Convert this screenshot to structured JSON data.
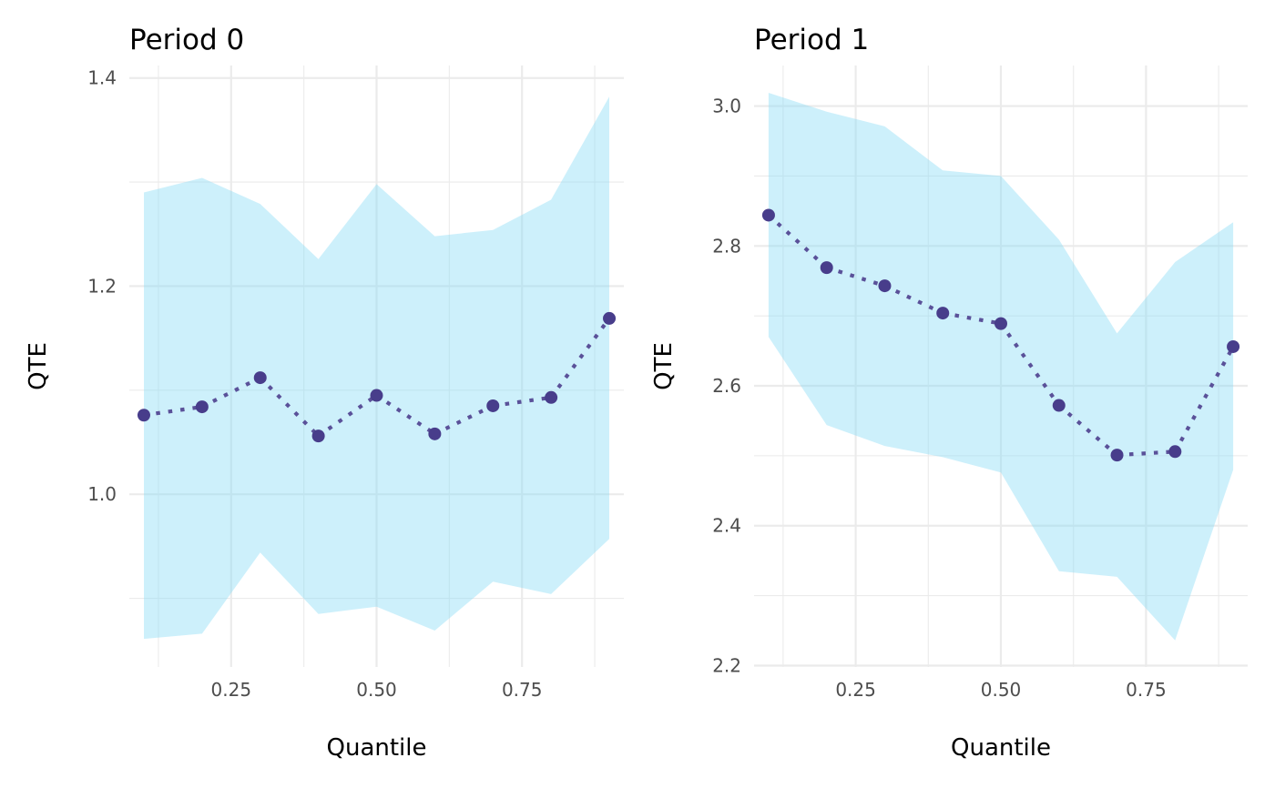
{
  "colors": {
    "ribbon": "#87dbf5",
    "ribbon_opacity": 0.42,
    "line": "#5a5199",
    "point": "#483d8b",
    "grid": "#ebebeb"
  },
  "chart_data": [
    {
      "type": "line",
      "title": "Period 0",
      "xlabel": "Quantile",
      "ylabel": "QTE",
      "xlim": [
        0.075,
        0.925
      ],
      "ylim": [
        0.834,
        1.412
      ],
      "xticks": [
        0.25,
        0.5,
        0.75
      ],
      "xtick_labels": [
        "0.25",
        "0.50",
        "0.75"
      ],
      "xminor": [
        0.125,
        0.375,
        0.625,
        0.875
      ],
      "yticks": [
        1.0,
        1.2,
        1.4
      ],
      "ytick_labels": [
        "1.0",
        "1.2",
        "1.4"
      ],
      "yminor": [
        0.9,
        1.1,
        1.3
      ],
      "grid": true,
      "line_style": "dotted",
      "x": [
        0.1,
        0.2,
        0.3,
        0.4,
        0.5,
        0.6,
        0.7,
        0.8,
        0.9
      ],
      "y": [
        1.076,
        1.084,
        1.112,
        1.056,
        1.095,
        1.058,
        1.085,
        1.093,
        1.169
      ],
      "ci_lower": [
        0.861,
        0.866,
        0.944,
        0.885,
        0.892,
        0.869,
        0.916,
        0.904,
        0.957
      ],
      "ci_upper": [
        1.29,
        1.304,
        1.279,
        1.226,
        1.298,
        1.248,
        1.254,
        1.283,
        1.382
      ]
    },
    {
      "type": "line",
      "title": "Period 1",
      "xlabel": "Quantile",
      "ylabel": "QTE",
      "xlim": [
        0.075,
        0.925
      ],
      "ylim": [
        2.198,
        3.058
      ],
      "xticks": [
        0.25,
        0.5,
        0.75
      ],
      "xtick_labels": [
        "0.25",
        "0.50",
        "0.75"
      ],
      "xminor": [
        0.125,
        0.375,
        0.625,
        0.875
      ],
      "yticks": [
        2.2,
        2.4,
        2.6,
        2.8,
        3.0
      ],
      "ytick_labels": [
        "2.2",
        "2.4",
        "2.6",
        "2.8",
        "3.0"
      ],
      "yminor": [
        2.3,
        2.5,
        2.7,
        2.9
      ],
      "grid": true,
      "line_style": "dotted",
      "x": [
        0.1,
        0.2,
        0.3,
        0.4,
        0.5,
        0.6,
        0.7,
        0.8,
        0.9
      ],
      "y": [
        2.844,
        2.769,
        2.743,
        2.704,
        2.689,
        2.572,
        2.501,
        2.506,
        2.656
      ],
      "ci_lower": [
        2.67,
        2.544,
        2.514,
        2.498,
        2.476,
        2.335,
        2.327,
        2.236,
        2.48
      ],
      "ci_upper": [
        3.019,
        2.992,
        2.971,
        2.908,
        2.9,
        2.809,
        2.675,
        2.777,
        2.834
      ]
    }
  ]
}
